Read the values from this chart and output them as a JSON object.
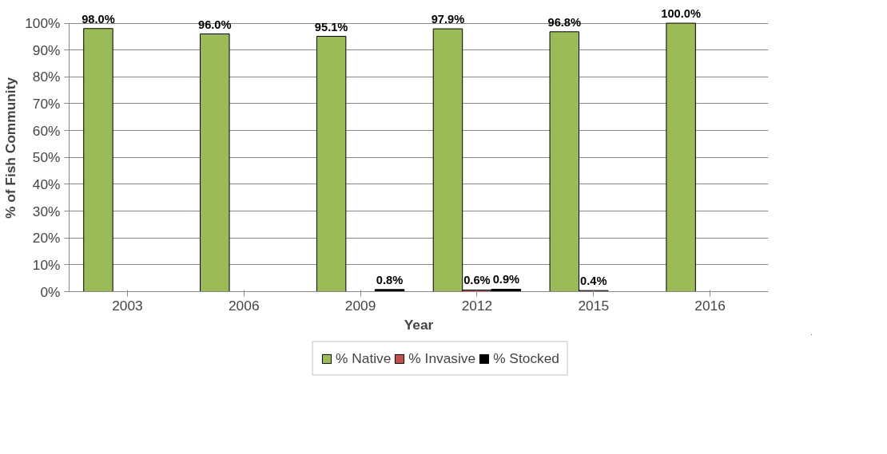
{
  "chart_data": {
    "type": "bar",
    "xlabel": "Year",
    "ylabel": "% of Fish Community",
    "categories": [
      "2003",
      "2006",
      "2009",
      "2012",
      "2015",
      "2016"
    ],
    "series": [
      {
        "name": "% Native",
        "color": "#9bbb59",
        "values": [
          98.0,
          96.0,
          95.1,
          97.9,
          96.8,
          100.0
        ],
        "value_labels": [
          "98.0%",
          "96.0%",
          "95.1%",
          "97.9%",
          "96.8%",
          "100.0%"
        ]
      },
      {
        "name": "% Invasive",
        "color": "#c0504d",
        "values": [
          null,
          null,
          null,
          0.6,
          0.4,
          null
        ],
        "value_labels": [
          null,
          null,
          null,
          "0.6%",
          "0.4%",
          null
        ]
      },
      {
        "name": "% Stocked",
        "color": "#000000",
        "values": [
          null,
          null,
          0.8,
          0.9,
          null,
          null
        ],
        "value_labels": [
          null,
          null,
          "0.8%",
          "0.9%",
          null,
          null
        ]
      }
    ],
    "ylim": [
      0,
      100
    ],
    "yticks": [
      {
        "value": 0,
        "label": "0%"
      },
      {
        "value": 10,
        "label": "10%"
      },
      {
        "value": 20,
        "label": "20%"
      },
      {
        "value": 30,
        "label": "30%"
      },
      {
        "value": 40,
        "label": "40%"
      },
      {
        "value": 50,
        "label": "50%"
      },
      {
        "value": 60,
        "label": "60%"
      },
      {
        "value": 70,
        "label": "70%"
      },
      {
        "value": 80,
        "label": "80%"
      },
      {
        "value": 90,
        "label": "90%"
      },
      {
        "value": 100,
        "label": "100%"
      }
    ],
    "grid": "y",
    "legend": "bottom"
  }
}
